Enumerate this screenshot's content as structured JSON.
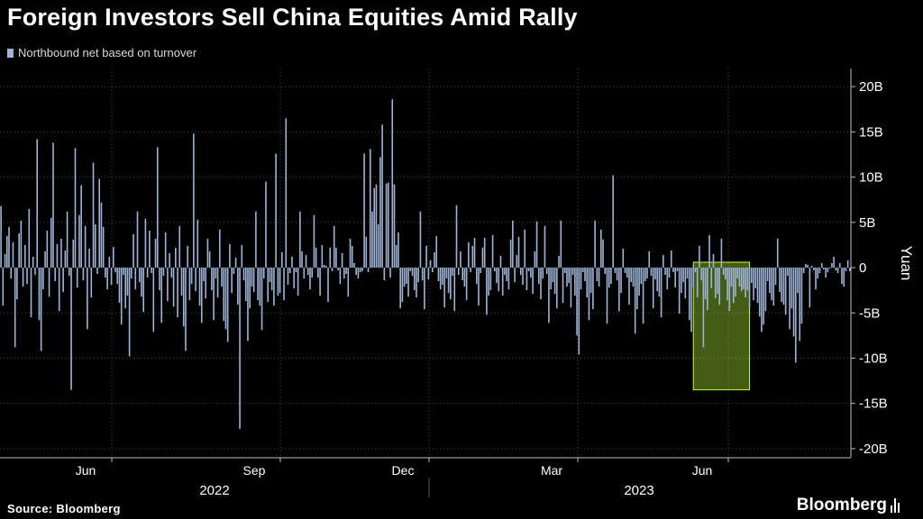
{
  "title": "Foreign Investors Sell China Equities Amid Rally",
  "legend_label": "Northbound net based on turnover",
  "source": "Source: Bloomberg",
  "brand": "Bloomberg",
  "colors": {
    "bar": "#9fb3d6",
    "highlight_fill": "#9acd32",
    "highlight_stroke": "#c8ff2e",
    "background": "#000000"
  },
  "chart_data": {
    "type": "bar",
    "series": [
      {
        "name": "Northbound net based on turnover"
      }
    ],
    "ylabel": "Yuan",
    "ylim": [
      -21,
      22
    ],
    "yticks": [
      {
        "value": 20,
        "label": "20B"
      },
      {
        "value": 15,
        "label": "15B"
      },
      {
        "value": 10,
        "label": "10B"
      },
      {
        "value": 5,
        "label": "5B"
      },
      {
        "value": 0,
        "label": "0"
      },
      {
        "value": -5,
        "label": "-5B"
      },
      {
        "value": -10,
        "label": "-10B"
      },
      {
        "value": -15,
        "label": "-15B"
      },
      {
        "value": -20,
        "label": "-20B"
      }
    ],
    "xticks": [
      "Jun",
      "Sep",
      "Dec",
      "Mar",
      "Jun"
    ],
    "years": [
      "2022",
      "2023"
    ],
    "grid": true,
    "highlight": {
      "from_index": 346,
      "to_index": 372,
      "ymin": -13.5,
      "ymax": 0.6
    },
    "values": [
      6.8,
      -4.2,
      1.5,
      3.5,
      4.5,
      -1.2,
      2.8,
      -8.8,
      -3.5,
      3.8,
      5.2,
      -2.1,
      2.5,
      -1.8,
      6.5,
      -5.5,
      1.2,
      -0.8,
      14.2,
      -5.8,
      -9.2,
      -2.4,
      1.8,
      4.1,
      -3.2,
      5.5,
      13.8,
      -1.5,
      2.6,
      -4.8,
      3.2,
      -2.7,
      1.9,
      6.2,
      -0.9,
      -13.5,
      3.1,
      13.2,
      -2.2,
      5.8,
      9.1,
      -1.4,
      4.6,
      -6.8,
      2.1,
      -3.3,
      11.6,
      4.8,
      -0.7,
      9.8,
      7.2,
      4.5,
      -1.1,
      -2.4,
      1.2,
      -1.9,
      2.3,
      -0.5,
      -1.8,
      -3.9,
      -6.3,
      -0.8,
      -4.5,
      -3.1,
      -9.8,
      -1.2,
      3.7,
      -2.4,
      6.2,
      -1.6,
      -3.2,
      -4.9,
      5.4,
      -1.1,
      4.1,
      -0.6,
      -7.1,
      3.2,
      13.3,
      -2.5,
      -6.1,
      -0.9,
      3.9,
      -3.7,
      1.6,
      -1.1,
      -4.3,
      2.2,
      -5.5,
      4.6,
      -3.1,
      -6.5,
      -9.2,
      2.4,
      -3.6,
      -1.8,
      14.8,
      -2.6,
      5.3,
      -4.2,
      -6.1,
      -1.5,
      -3.4,
      3.2,
      1.8,
      -2.5,
      -5.8,
      -1.2,
      -3.3,
      4.2,
      -2.1,
      -5.9,
      -6.8,
      -8.2,
      2.6,
      -2.8,
      -0.7,
      1.1,
      -4.1,
      -17.8,
      2.5,
      -1.4,
      -3.7,
      -8.1,
      -4.5,
      -2.1,
      -2.7,
      6.2,
      -3.6,
      -4.2,
      -6.9,
      -1.2,
      9.5,
      -3.8,
      -1.6,
      -2.5,
      -4.2,
      12.6,
      -3.1,
      -2.8,
      1.7,
      -3.6,
      16.5,
      -1.9,
      -0.6,
      1.2,
      -2.3,
      -0.5,
      -3.1,
      6.2,
      1.8,
      -1.2,
      1.4,
      -0.8,
      -2.4,
      -1.1,
      5.8,
      2.2,
      -1.1,
      -3.1,
      2.5,
      0.3,
      0.2,
      -3.8,
      2.2,
      -0.4,
      4.6,
      2.2,
      -0.3,
      -1.8,
      1.6,
      -1.2,
      -0.7,
      -3.2,
      3.2,
      2.4,
      0.5,
      -0.8,
      -1.2,
      -0.5,
      -0.4,
      12.6,
      3.4,
      -0.5,
      13.1,
      6.2,
      8.8,
      9.2,
      4.8,
      12.2,
      15.8,
      -1.4,
      9.3,
      9.4,
      -1.1,
      18.6,
      9.2,
      2.5,
      3.9,
      -4.5,
      -3.8,
      -2.1,
      -1.8,
      -3.2,
      -0.4,
      -0.9,
      -2.5,
      -3.3,
      -1.6,
      6.2,
      -1.4,
      -4.6,
      2.4,
      -1.3,
      0.8,
      -0.5,
      1.7,
      3.5,
      -1.5,
      -2.4,
      -1.9,
      -4.4,
      -1.2,
      -2.8,
      -3.5,
      -0.9,
      -4.8,
      6.9,
      -0.8,
      1.8,
      -1.4,
      -2.1,
      -3.6,
      2.8,
      -0.5,
      2.4,
      3.3,
      -1.8,
      -4.2,
      -0.6,
      2.2,
      3.3,
      -5.2,
      -3.1,
      -2.5,
      3.6,
      -0.4,
      -1.7,
      -2.6,
      1.3,
      -3.1,
      -0.8,
      -1.5,
      -2.4,
      3.1,
      5.2,
      -1.6,
      1.4,
      3.4,
      -0.8,
      -1.9,
      4.2,
      -2.5,
      -0.4,
      -1.1,
      -2.9,
      1.8,
      5.1,
      -1.8,
      -3.5,
      -1.2,
      4.6,
      -0.7,
      -6.1,
      -2.4,
      -1.6,
      -2.9,
      -4.5,
      1.3,
      5.2,
      -3.9,
      -0.6,
      -2.1,
      -1.7,
      -4.4,
      -0.8,
      -3.1,
      -7.5,
      -9.6,
      -2.4,
      -0.5,
      -1.5,
      -3.3,
      -5.8,
      -2.8,
      -4.6,
      5.2,
      -1.5,
      -2.1,
      4.2,
      3.1,
      -0.7,
      -6.2,
      -2.2,
      -1.8,
      10.2,
      -0.6,
      -1.4,
      -4.8,
      -2.8,
      2.1,
      -0.6,
      -1.1,
      -4.1,
      -1.6,
      -2.1,
      -7.3,
      -4.6,
      -3.1,
      -1.8,
      -6.2,
      -1.5,
      -1.2,
      1.8,
      -0.9,
      -4.5,
      -1.3,
      -2.6,
      -3.2,
      -5.5,
      1.4,
      -0.8,
      -2.4,
      -1.1,
      1.9,
      -0.5,
      -2.2,
      -0.4,
      -5.1,
      -2.8,
      -1.6,
      -3.4,
      -1.2,
      -5.8,
      -7.1,
      -2.2,
      -0.5,
      -3.3,
      2.4,
      -1.4,
      -8.8,
      -3.5,
      -4.7,
      3.6,
      -2.3,
      1.5,
      -3.4,
      -2.9,
      -4.1,
      3.2,
      -0.8,
      -1.3,
      -3.6,
      -4.8,
      -2.1,
      -3.9,
      -3.2,
      -1.2,
      -2.1,
      -2.6,
      -2.4,
      -3.3,
      -2.5,
      -4.4,
      -1.7,
      -3.6,
      -2.3,
      -3.9,
      -5.4,
      -7.1,
      -6.3,
      -4.8,
      -1.5,
      -2.8,
      -3.6,
      -4.2,
      -1.9,
      3.2,
      -2.7,
      -3.8,
      -4.1,
      -5.2,
      -0.9,
      -6.8,
      -4.5,
      -7.6,
      -10.5,
      -2.8,
      -8.1,
      -6.2,
      -0.6,
      0.4,
      0.3,
      -4.4,
      0.2,
      -0.3,
      -2.4,
      -1.2,
      -0.6,
      0.5,
      -0.2,
      -1.1,
      -0.5,
      -0.1,
      0.5,
      1.2,
      -0.3,
      -0.6,
      0.5,
      -1.8,
      -2.1,
      -0.4,
      0.8,
      -0.4
    ]
  }
}
